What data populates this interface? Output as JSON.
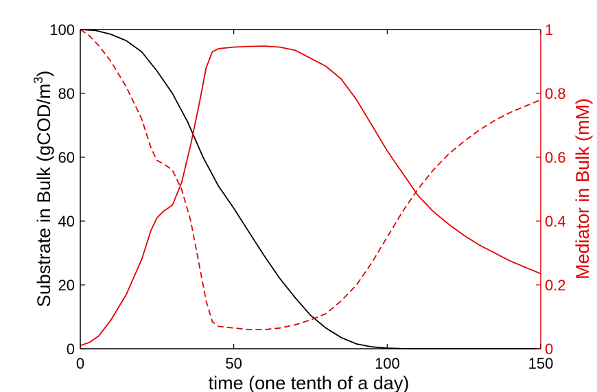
{
  "chart_data": {
    "type": "line",
    "xlabel": "time (one tenth of a day)",
    "ylabel_left": "Substrate in Bulk (gCOD/m",
    "ylabel_left_sup": "3",
    "ylabel_left_close": ")",
    "ylabel_right": "Mediator in Bulk (mM)",
    "xlim": [
      0,
      150
    ],
    "ylim_left": [
      0,
      100
    ],
    "ylim_right": [
      0,
      1
    ],
    "x_ticks": [
      "0",
      "50",
      "100",
      "150"
    ],
    "y_left_ticks": [
      "0",
      "20",
      "40",
      "60",
      "80",
      "100"
    ],
    "y_right_ticks": [
      "0",
      "0.2",
      "0.4",
      "0.6",
      "0.8",
      "1"
    ],
    "colors": {
      "left_axis": "#000000",
      "right_axis": "#e00000"
    },
    "series": [
      {
        "axis": "left",
        "color": "#000000",
        "dash": "solid",
        "points": [
          [
            0,
            100
          ],
          [
            5,
            99.7
          ],
          [
            10,
            98.5
          ],
          [
            15,
            96.5
          ],
          [
            20,
            93
          ],
          [
            25,
            87
          ],
          [
            30,
            80
          ],
          [
            35,
            71
          ],
          [
            40,
            60
          ],
          [
            45,
            51
          ],
          [
            50,
            44
          ],
          [
            55,
            36.5
          ],
          [
            60,
            29
          ],
          [
            65,
            22
          ],
          [
            70,
            16
          ],
          [
            75,
            10.5
          ],
          [
            80,
            6.5
          ],
          [
            85,
            3.5
          ],
          [
            90,
            1.5
          ],
          [
            95,
            0.6
          ],
          [
            100,
            0.2
          ],
          [
            105,
            0.05
          ],
          [
            110,
            0
          ],
          [
            150,
            0
          ]
        ]
      },
      {
        "axis": "right",
        "color": "#e00000",
        "dash": "dashed",
        "points": [
          [
            0,
            1
          ],
          [
            3,
            0.98
          ],
          [
            6,
            0.95
          ],
          [
            10,
            0.9
          ],
          [
            15,
            0.82
          ],
          [
            20,
            0.72
          ],
          [
            23,
            0.63
          ],
          [
            25,
            0.59
          ],
          [
            27,
            0.58
          ],
          [
            30,
            0.56
          ],
          [
            33,
            0.5
          ],
          [
            36,
            0.4
          ],
          [
            39,
            0.25
          ],
          [
            41,
            0.15
          ],
          [
            43,
            0.085
          ],
          [
            45,
            0.07
          ],
          [
            50,
            0.065
          ],
          [
            55,
            0.06
          ],
          [
            60,
            0.06
          ],
          [
            65,
            0.065
          ],
          [
            70,
            0.075
          ],
          [
            75,
            0.09
          ],
          [
            80,
            0.11
          ],
          [
            85,
            0.15
          ],
          [
            90,
            0.2
          ],
          [
            95,
            0.27
          ],
          [
            100,
            0.35
          ],
          [
            105,
            0.43
          ],
          [
            110,
            0.5
          ],
          [
            115,
            0.56
          ],
          [
            120,
            0.61
          ],
          [
            125,
            0.65
          ],
          [
            130,
            0.685
          ],
          [
            135,
            0.715
          ],
          [
            140,
            0.74
          ],
          [
            145,
            0.76
          ],
          [
            150,
            0.78
          ]
        ]
      },
      {
        "axis": "right",
        "color": "#e00000",
        "dash": "solid",
        "points": [
          [
            0,
            0.01
          ],
          [
            3,
            0.02
          ],
          [
            6,
            0.04
          ],
          [
            10,
            0.09
          ],
          [
            15,
            0.17
          ],
          [
            20,
            0.28
          ],
          [
            23,
            0.37
          ],
          [
            25,
            0.41
          ],
          [
            27,
            0.43
          ],
          [
            30,
            0.45
          ],
          [
            33,
            0.52
          ],
          [
            36,
            0.64
          ],
          [
            39,
            0.78
          ],
          [
            41,
            0.88
          ],
          [
            43,
            0.93
          ],
          [
            45,
            0.94
          ],
          [
            50,
            0.945
          ],
          [
            55,
            0.947
          ],
          [
            60,
            0.948
          ],
          [
            65,
            0.945
          ],
          [
            70,
            0.935
          ],
          [
            75,
            0.91
          ],
          [
            80,
            0.885
          ],
          [
            85,
            0.845
          ],
          [
            90,
            0.78
          ],
          [
            95,
            0.7
          ],
          [
            100,
            0.62
          ],
          [
            105,
            0.55
          ],
          [
            110,
            0.48
          ],
          [
            115,
            0.43
          ],
          [
            120,
            0.39
          ],
          [
            125,
            0.355
          ],
          [
            130,
            0.325
          ],
          [
            135,
            0.3
          ],
          [
            140,
            0.275
          ],
          [
            145,
            0.255
          ],
          [
            150,
            0.235
          ]
        ]
      }
    ]
  }
}
